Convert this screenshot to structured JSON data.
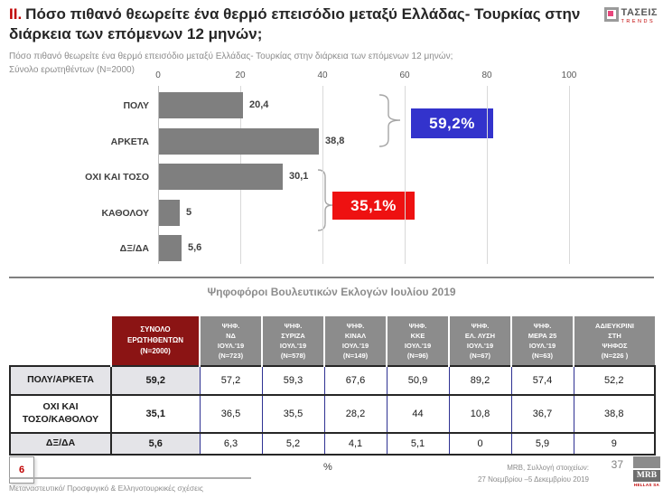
{
  "header": {
    "title_prefix": "II.",
    "title": "Πόσο πιθανό θεωρείτε ένα θερμό επεισόδιο μεταξύ Ελλάδας- Τουρκίας στην διάρκεια των επόμενων 12 μηνών;",
    "subtitle_line1": "Πόσο πιθανό θεωρείτε ένα θερμό επεισόδιο μεταξύ Ελλάδας- Τουρκίας στην διάρκεια των επόμενων 12 μηνών;",
    "subtitle_line2": "Σύνολο ερωτηθέντων (N=2000)",
    "logo": {
      "name": "ΤΑΣΕΙΣ",
      "sub": "TRENDS"
    }
  },
  "chart_data": {
    "type": "bar",
    "orientation": "horizontal",
    "categories": [
      "ΠΟΛΥ",
      "ΑΡΚΕΤΑ",
      "ΟΧΙ ΚΑΙ ΤΟΣΟ",
      "ΚΑΘΟΛΟΥ",
      "ΔΞ/ΔΑ"
    ],
    "values": [
      20.4,
      38.8,
      30.1,
      5,
      5.6
    ],
    "value_labels": [
      "20,4",
      "38,8",
      "30,1",
      "5",
      "5,6"
    ],
    "xlim": [
      0,
      100
    ],
    "x_ticks": [
      0,
      20,
      40,
      60,
      80,
      100
    ],
    "grid": true,
    "bar_color": "#7f7f7f",
    "annotations": [
      {
        "label": "59,2%",
        "value": 59.2,
        "color": "#3333cc",
        "groups": [
          "ΠΟΛΥ",
          "ΑΡΚΕΤΑ"
        ]
      },
      {
        "label": "35,1%",
        "value": 35.1,
        "color": "#ee1111",
        "groups": [
          "ΟΧΙ ΚΑΙ ΤΟΣΟ",
          "ΚΑΘΟΛΟΥ"
        ]
      }
    ]
  },
  "table": {
    "section_title": "Ψηφοφόροι Βουλευτικών Εκλογών Ιουλίου 2019",
    "columns": [
      "ΣΥΝΟΛΟ\nΕΡΩΤΗΘΕΝΤΩΝ\n(N=2000)",
      "ΨΗΦ.\nΝΔ\nΙΟΥΛ.'19\n(N=723)",
      "ΨΗΦ.\nΣΥΡΙΖΑ\nΙΟΥΛ.'19\n(N=578)",
      "ΨΗΦ.\nΚΙΝΑΛ\nΙΟΥΛ.'19\n(N=149)",
      "ΨΗΦ.\nΚΚΕ\nΙΟΥΛ.'19\n(N=96)",
      "ΨΗΦ.\nΕΛ. ΛΥΣΗ\nΙΟΥΛ.'19\n(N=67)",
      "ΨΗΦ.\nΜΕΡΑ 25\nΙΟΥΛ.'19\n(N=63)",
      "ΑΔΙΕΥΚΡΙΝΙ\nΣΤΗ\nΨΗΦΟΣ\n(N=226 )"
    ],
    "rows": [
      {
        "label": "ΠΟΛΥ/ΑΡΚΕΤΑ",
        "values": [
          "59,2",
          "57,2",
          "59,3",
          "67,6",
          "50,9",
          "89,2",
          "57,4",
          "52,2"
        ]
      },
      {
        "label": "ΟΧΙ ΚΑΙ\nΤΟΣΟ/ΚΑΘΟΛΟΥ",
        "values": [
          "35,1",
          "36,5",
          "35,5",
          "28,2",
          "44",
          "10,8",
          "36,7",
          "38,8"
        ]
      },
      {
        "label": "ΔΞ/ΔΑ",
        "values": [
          "5,6",
          "6,3",
          "5,2",
          "4,1",
          "5,1",
          "0",
          "5,9",
          "9"
        ]
      }
    ]
  },
  "footer": {
    "slide_number": "6",
    "percent_note": "%",
    "left_note": "Μεταναστευτικό/ Προσφυγικό & Ελληνοτουρκικές σχέσεις",
    "right_note_line1": "MRB, Συλλογή στοιχείων:",
    "right_note_line2": "27 Νοεμβρίου –5 Δεκεμβρίου 2019",
    "page_number": "37",
    "mrb_logo": {
      "name": "MRB",
      "sub": "HELLAS SA"
    }
  },
  "colors": {
    "bar": "#7f7f7f",
    "callout_blue": "#3333cc",
    "callout_red": "#ee1111",
    "header_dark_red": "#8b1414",
    "header_gray": "#8c8c8c",
    "accent_red": "#c00000"
  }
}
